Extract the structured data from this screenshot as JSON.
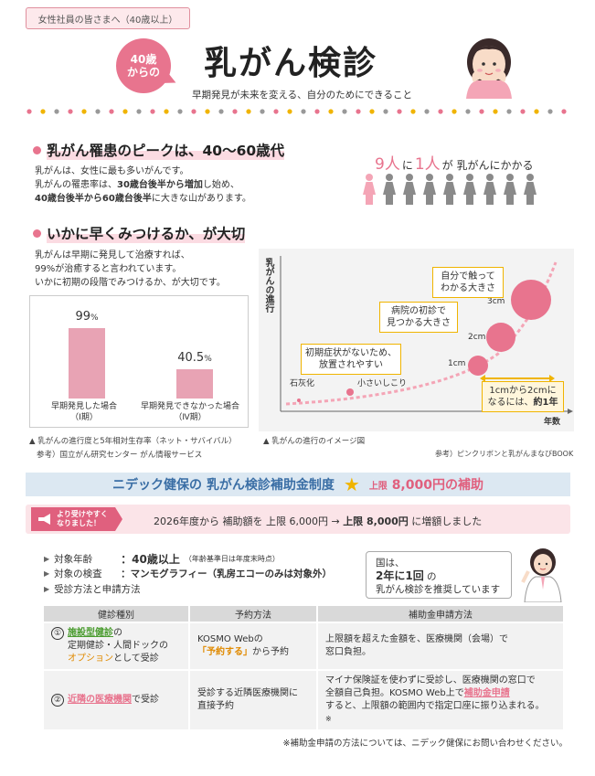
{
  "header": {
    "audience": "女性社員の皆さまへ（40歳以上）",
    "badge_line1": "40歳",
    "badge_line2": "からの",
    "title": "乳がん検診",
    "subtitle": "早期発見が未来を変える、自分のためにできること"
  },
  "section1": {
    "heading": "乳がん罹患のピークは、40〜60歳代",
    "line1": "乳がんは、女性に最も多いがんです。",
    "line2_a": "乳がんの罹患率は、",
    "line2_b": "30歳台後半から増加",
    "line2_c": "し始め、",
    "line3_a": "40歳台後半から60歳台後半",
    "line3_b": "に大きな山があります。",
    "stat_a": "9人",
    "stat_b": "に",
    "stat_c": "1人",
    "stat_d": "が 乳がんにかかる",
    "people_total": 9,
    "people_highlighted": 1,
    "color_highlight": "#f4a5b6",
    "color_default": "#8a8a8a"
  },
  "section2": {
    "heading": "いかに早くみつけるか、が大切",
    "line1": "乳がんは早期に発見して治療すれば、",
    "line2": "99%が治癒すると言われています。",
    "line3": "いかに初期の段階でみつけるか、が大切です。"
  },
  "survival_chart": {
    "chart_data": {
      "type": "bar",
      "categories": [
        "早期発見した場合（Ⅰ期）",
        "早期発見できなかった場合（Ⅳ期）"
      ],
      "values": [
        99,
        40.5
      ],
      "ylim": [
        0,
        100
      ]
    },
    "val1": "99",
    "val1_unit": "%",
    "val2": "40.5",
    "val2_unit": "%",
    "cat1_a": "早期発見した場合",
    "cat1_b": "（Ⅰ期）",
    "cat2_a": "早期発見できなかった場合",
    "cat2_b": "（Ⅳ期）",
    "note": "乳がんの進行度と5年相対生存率（ネット・サバイバル）",
    "source": "参考）国立がん研究センター がん情報サービス"
  },
  "progress_chart": {
    "y_label": "乳がんの進行",
    "x_label": "年数",
    "stage1": "石灰化",
    "stage2": "小さいしこり",
    "size1": "1cm",
    "size2": "2cm",
    "size3": "3cm",
    "callout1_a": "初期症状がないため、",
    "callout1_b": "放置されやすい",
    "callout2_a": "病院の初診で",
    "callout2_b": "見つかる大きさ",
    "callout3_a": "自分で触って",
    "callout3_b": "わかる大きさ",
    "growth_a": "1cmから2cmに",
    "growth_b": "なるには、",
    "growth_c": "約1年",
    "caption": "乳がんの進行のイメージ図",
    "source": "参考）ピンクリボンと乳がんまなびBOOK"
  },
  "subsidy": {
    "title": "ニデック健保の 乳がん検診補助金制度",
    "star": "★",
    "limit_a": "上限",
    "limit_b": "8,000円の補助",
    "tag_a": "より受けやすく",
    "tag_b": "なりました！",
    "change_a": "2026年度から  補助額を 上限 6,000円  → ",
    "change_b": "上限 8,000円",
    "change_c": " に増額しました"
  },
  "eligibility": {
    "age_label": "対象年齢",
    "age_value": "40歳以上",
    "age_note": "（年齢基準日は年度末時点）",
    "exam_label": "対象の検査",
    "exam_value": "マンモグラフィー（乳房エコーのみは対象外）",
    "method_label": "受診方法と申請方法",
    "speech_a": "国は、",
    "speech_b": "2年に1回",
    "speech_c": " の",
    "speech_d": "乳がん検診を推奨しています"
  },
  "table": {
    "headers": [
      "健診種別",
      "予約方法",
      "補助金申請方法"
    ],
    "row1": {
      "num": "①",
      "type_a": "施設型健診",
      "type_b": "の",
      "type_c": "定期健診・人間ドックの",
      "type_d": "オプション",
      "type_e": "として受診",
      "reserve_a": "KOSMO Webの",
      "reserve_b": "「予約する」",
      "reserve_c": "から予約",
      "apply_a": "上限額を超えた金額を、医療機関（会場）で",
      "apply_b": "窓口負担。"
    },
    "row2": {
      "num": "②",
      "type_a": "近隣の医療機関",
      "type_b": "で受診",
      "reserve_a": "受診する近隣医療機関に",
      "reserve_b": "直接予約",
      "apply_a": "マイナ保険証を使わずに受診し、医療機関の窓口で",
      "apply_b": "全額自己負担。KOSMO Web上で",
      "apply_c": "補助金申請",
      "apply_d": "すると、上限額の範囲内で指定口座に振り込まれる。",
      "apply_e": "※"
    }
  },
  "footer_note": "※補助金申請の方法については、ニデック健保にお問い合わせください。"
}
